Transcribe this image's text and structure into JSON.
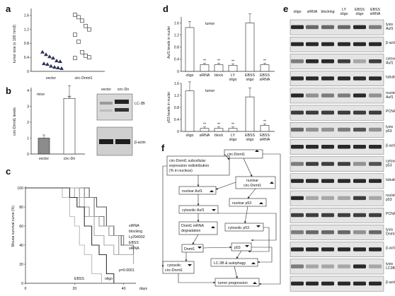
{
  "panels": {
    "a": {
      "label": "a",
      "ylabel": "tumor size (x 100 mm3)",
      "yticks": [
        "0",
        "0.4",
        "0.8",
        "1.2",
        "1.6"
      ],
      "xticks": [
        "vector",
        "circ-Dnmt1"
      ]
    },
    "b": {
      "label": "b",
      "ylabel": "circ-Dnmt1 levels",
      "subtitle": "mice",
      "yticks": [
        "0",
        "1",
        "2",
        "3",
        "4"
      ],
      "xticks": [
        "vector",
        "circ-Dn"
      ],
      "sig": "**",
      "blot_cols": [
        "vector",
        "circ-Dn"
      ],
      "blot_rows": [
        "LC-3B",
        "β-actin"
      ]
    },
    "c": {
      "label": "c",
      "ylabel": "Mouse survival curve (%)",
      "yticks": [
        "0",
        "20",
        "40",
        "60",
        "80",
        "100"
      ],
      "xticks": [
        "0",
        "20",
        "40"
      ],
      "xunit": "days",
      "legend": [
        "siRNA",
        "blocking",
        "Ly294002",
        "EBSS",
        "siRNA"
      ],
      "labels_in_plot": [
        "EBSS",
        "oligo"
      ],
      "pvalue": "p=0.0001"
    },
    "d": {
      "label": "d",
      "top": {
        "title": "tumor",
        "ylabel": "Auf1 levels in nuclei",
        "yticks": [
          "0",
          "0.4",
          "0.8",
          "1.2",
          "1.6"
        ]
      },
      "bottom": {
        "title": "tumor",
        "ylabel": "p53 levels in nuclei",
        "yticks": [
          "0",
          "0.4",
          "0.8",
          "1.2",
          "1.6"
        ]
      },
      "xticks": [
        "oligo",
        "siRNA",
        "block",
        "LY oligo",
        "EBSS oligo",
        "EBSS siRNA"
      ],
      "sig": "**"
    },
    "e": {
      "label": "e",
      "cols": [
        "oligo",
        "siRNA",
        "blocking",
        "LY oligo",
        "EBSS oligo",
        "EBSS siRNA"
      ],
      "rows": [
        "lysis Auf1",
        "β-actin",
        "cytosol Auf1",
        "tubulin",
        "nuclei Auf1",
        "PCNA",
        "lysis p53",
        "β-actin",
        "cytosol p53",
        "tubulin",
        "nuclei p53",
        "PCNA",
        "lysis Dnmt1",
        "β-actin",
        "lysis LC3B",
        "β-actin"
      ]
    },
    "f": {
      "label": "f",
      "nodes": {
        "circ": "circ-Dnmt1",
        "subcell_1": "circ-Dnmt1 subcellular",
        "subcell_2": "expression redistribution",
        "subcell_3": "(% in nucleus)",
        "nuc_circ_1": "nuclear",
        "nuc_circ_2": "circ-Dnmt1",
        "nuc_auf1": "nuclear Auf1",
        "cyto_auf1": "cytosolic Auf1",
        "nuc_p53": "nuclear p53",
        "mrna_1": "Dnmt1 mRNA",
        "mrna_2": "degradation",
        "cyto_p53": "cytosolic p53",
        "dnmt1": "Dnmt1",
        "p53": "p53",
        "lc3b": "LC-3B & autophagy",
        "cyto_circ_1": "cytosolic",
        "cyto_circ_2": "circ-Dnmt1",
        "tumor": "tumor progression"
      }
    }
  },
  "chart_data": [
    {
      "type": "scatter",
      "panel": "a",
      "ylabel": "tumor size (x 100 mm3)",
      "ylim": [
        0,
        1.8
      ],
      "categories": [
        "vector",
        "circ-Dnmt1"
      ],
      "series": [
        {
          "name": "vector",
          "values": [
            0.55,
            0.48,
            0.42,
            0.38,
            0.3,
            0.28,
            0.22,
            0.2,
            0.15,
            0.12,
            0.1,
            0.08
          ]
        },
        {
          "name": "circ-Dnmt1",
          "values": [
            1.62,
            1.55,
            1.45,
            1.3,
            1.2,
            1.05,
            0.85,
            0.55,
            0.45,
            0.4,
            0.38
          ]
        }
      ]
    },
    {
      "type": "bar",
      "panel": "b",
      "categories": [
        "vector",
        "circ-Dn"
      ],
      "values": [
        1.0,
        3.5
      ],
      "errors": [
        0.2,
        0.8
      ],
      "ylabel": "circ-Dnmt1 levels",
      "ylim": [
        0,
        4
      ]
    },
    {
      "type": "line",
      "panel": "c",
      "ylabel": "Mouse survival curve (%)",
      "xlim": [
        0,
        45
      ],
      "ylim": [
        0,
        100
      ],
      "series": [
        {
          "name": "siRNA",
          "x": [
            0,
            22,
            26,
            29,
            33,
            36,
            39,
            44
          ],
          "y": [
            100,
            100,
            90,
            80,
            60,
            50,
            40,
            40
          ]
        },
        {
          "name": "blocking",
          "x": [
            0,
            20,
            24,
            28,
            32,
            36,
            40,
            44
          ],
          "y": [
            100,
            100,
            90,
            70,
            60,
            50,
            40,
            30
          ]
        },
        {
          "name": "Ly294002",
          "x": [
            0,
            18,
            22,
            26,
            30,
            34,
            38,
            44
          ],
          "y": [
            100,
            100,
            80,
            70,
            60,
            50,
            30,
            30
          ]
        },
        {
          "name": "EBSS siRNA",
          "x": [
            0,
            16,
            20,
            24,
            28,
            32,
            36,
            44
          ],
          "y": [
            100,
            100,
            90,
            70,
            50,
            40,
            30,
            20
          ]
        },
        {
          "name": "EBSS",
          "x": [
            0,
            12,
            15,
            18,
            20,
            22,
            24,
            27,
            31
          ],
          "y": [
            100,
            100,
            90,
            70,
            60,
            40,
            30,
            10,
            0
          ]
        },
        {
          "name": "oligo",
          "x": [
            0,
            14,
            18,
            21,
            24,
            27,
            30,
            33,
            36
          ],
          "y": [
            100,
            100,
            90,
            80,
            60,
            40,
            30,
            10,
            0
          ]
        }
      ]
    },
    {
      "type": "bar",
      "panel": "d-top",
      "categories": [
        "oligo",
        "siRNA",
        "block",
        "LY oligo",
        "EBSS oligo",
        "EBSS siRNA"
      ],
      "values": [
        1.45,
        0.22,
        0.22,
        0.2,
        1.6,
        0.22
      ],
      "errors": [
        0.2,
        0.05,
        0.05,
        0.05,
        0.3,
        0.05
      ],
      "ylabel": "Auf1 levels in nuclei",
      "ylim": [
        0,
        1.8
      ]
    },
    {
      "type": "bar",
      "panel": "d-bottom",
      "categories": [
        "oligo",
        "siRNA",
        "block",
        "LY oligo",
        "EBSS oligo",
        "EBSS siRNA"
      ],
      "values": [
        1.35,
        0.1,
        0.1,
        0.1,
        1.15,
        0.2
      ],
      "errors": [
        0.3,
        0.05,
        0.05,
        0.05,
        0.3,
        0.05
      ],
      "ylabel": "p53 levels in nuclei",
      "ylim": [
        0,
        1.6
      ]
    }
  ]
}
